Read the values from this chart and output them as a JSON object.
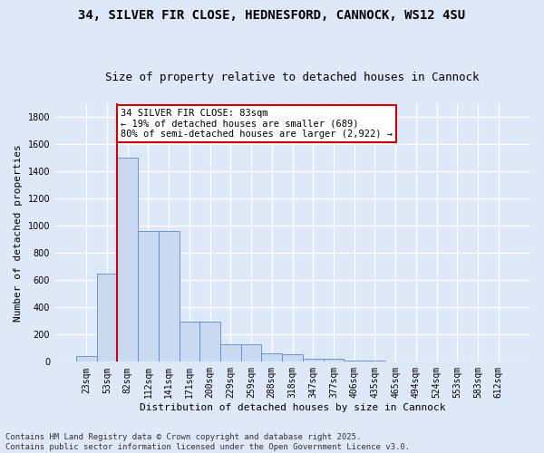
{
  "title_line1": "34, SILVER FIR CLOSE, HEDNESFORD, CANNOCK, WS12 4SU",
  "title_line2": "Size of property relative to detached houses in Cannock",
  "xlabel": "Distribution of detached houses by size in Cannock",
  "ylabel": "Number of detached properties",
  "bar_labels": [
    "23sqm",
    "53sqm",
    "82sqm",
    "112sqm",
    "141sqm",
    "171sqm",
    "200sqm",
    "229sqm",
    "259sqm",
    "288sqm",
    "318sqm",
    "347sqm",
    "377sqm",
    "406sqm",
    "435sqm",
    "465sqm",
    "494sqm",
    "524sqm",
    "553sqm",
    "583sqm",
    "612sqm"
  ],
  "bar_values": [
    40,
    650,
    1500,
    960,
    960,
    295,
    295,
    130,
    130,
    60,
    55,
    22,
    22,
    8,
    8,
    3,
    3,
    1,
    1,
    0,
    0
  ],
  "bar_color": "#c9d9f0",
  "bar_edge_color": "#5b8bc9",
  "vline_color": "#cc0000",
  "annotation_text": "34 SILVER FIR CLOSE: 83sqm\n← 19% of detached houses are smaller (689)\n80% of semi-detached houses are larger (2,922) →",
  "annotation_box_color": "#cc0000",
  "annotation_bg": "#ffffff",
  "ylim": [
    0,
    1900
  ],
  "yticks": [
    0,
    200,
    400,
    600,
    800,
    1000,
    1200,
    1400,
    1600,
    1800
  ],
  "bg_color": "#dde8f8",
  "grid_color": "#ffffff",
  "footer_line1": "Contains HM Land Registry data © Crown copyright and database right 2025.",
  "footer_line2": "Contains public sector information licensed under the Open Government Licence v3.0.",
  "title_fontsize": 10,
  "subtitle_fontsize": 9,
  "axis_label_fontsize": 8,
  "tick_fontsize": 7,
  "annotation_fontsize": 7.5,
  "footer_fontsize": 6.5
}
